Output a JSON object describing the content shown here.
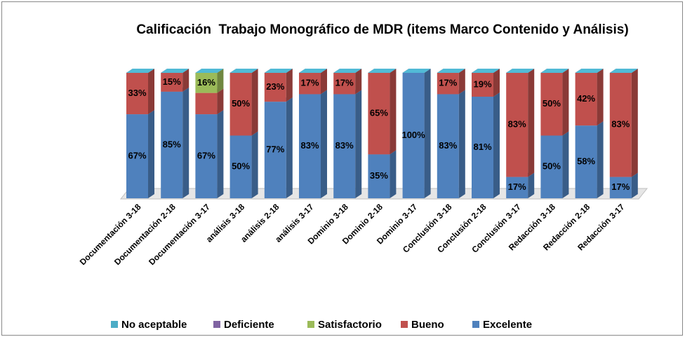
{
  "chart_data": {
    "type": "bar3d_stacked",
    "title": "Calificación  Trabajo Monográfico de MDR (items Marco Contenido y Análisis)",
    "categories": [
      "Documentación 3-18",
      "Documentación 2-18",
      "Documentación 3-17",
      "análisis 3-18",
      "análisis 2-18",
      "análisis 3-17",
      "Dominio 3-18",
      "Dominio 2-18",
      "Dominio 3-17",
      "Conclusión 3-18",
      "Conclusión 2-18",
      "Conclusión 3-17",
      "Redacción 3-18",
      "Redacción 2-18",
      "Redacción 3-17"
    ],
    "series": [
      {
        "name": "No aceptable",
        "color": "#4bacc6",
        "values": [
          0,
          0,
          0,
          0,
          0,
          0,
          0,
          0,
          0,
          0,
          0,
          0,
          0,
          0,
          0
        ]
      },
      {
        "name": "Deficiente",
        "color": "#8064a2",
        "values": [
          0,
          0,
          0,
          0,
          0,
          0,
          0,
          0,
          0,
          0,
          0,
          0,
          0,
          0,
          0
        ]
      },
      {
        "name": "Satisfactorio",
        "color": "#9bbb59",
        "values": [
          0,
          0,
          16,
          0,
          0,
          0,
          0,
          0,
          0,
          0,
          0,
          0,
          0,
          0,
          0
        ],
        "value_labels": [
          null,
          null,
          "16%",
          null,
          null,
          null,
          null,
          null,
          null,
          null,
          null,
          null,
          null,
          null,
          null
        ]
      },
      {
        "name": "Bueno",
        "color": "#c0504d",
        "values": [
          33,
          15,
          17,
          50,
          23,
          17,
          17,
          65,
          0,
          17,
          19,
          83,
          50,
          42,
          83
        ],
        "value_labels": [
          "33%",
          "15%",
          null,
          "50%",
          "23%",
          "17%",
          "17%",
          "65%",
          null,
          "17%",
          "19%",
          "83%",
          "50%",
          "42%",
          "83%"
        ]
      },
      {
        "name": "Excelente",
        "color": "#4f81bd",
        "values": [
          67,
          85,
          67,
          50,
          77,
          83,
          83,
          35,
          100,
          83,
          81,
          17,
          50,
          58,
          17
        ],
        "value_labels": [
          "67%",
          "85%",
          "67%",
          "50%",
          "77%",
          "83%",
          "83%",
          "35%",
          "100%",
          "83%",
          "81%",
          "17%",
          "50%",
          "58%",
          "17%"
        ]
      }
    ],
    "legend": "bottom"
  }
}
